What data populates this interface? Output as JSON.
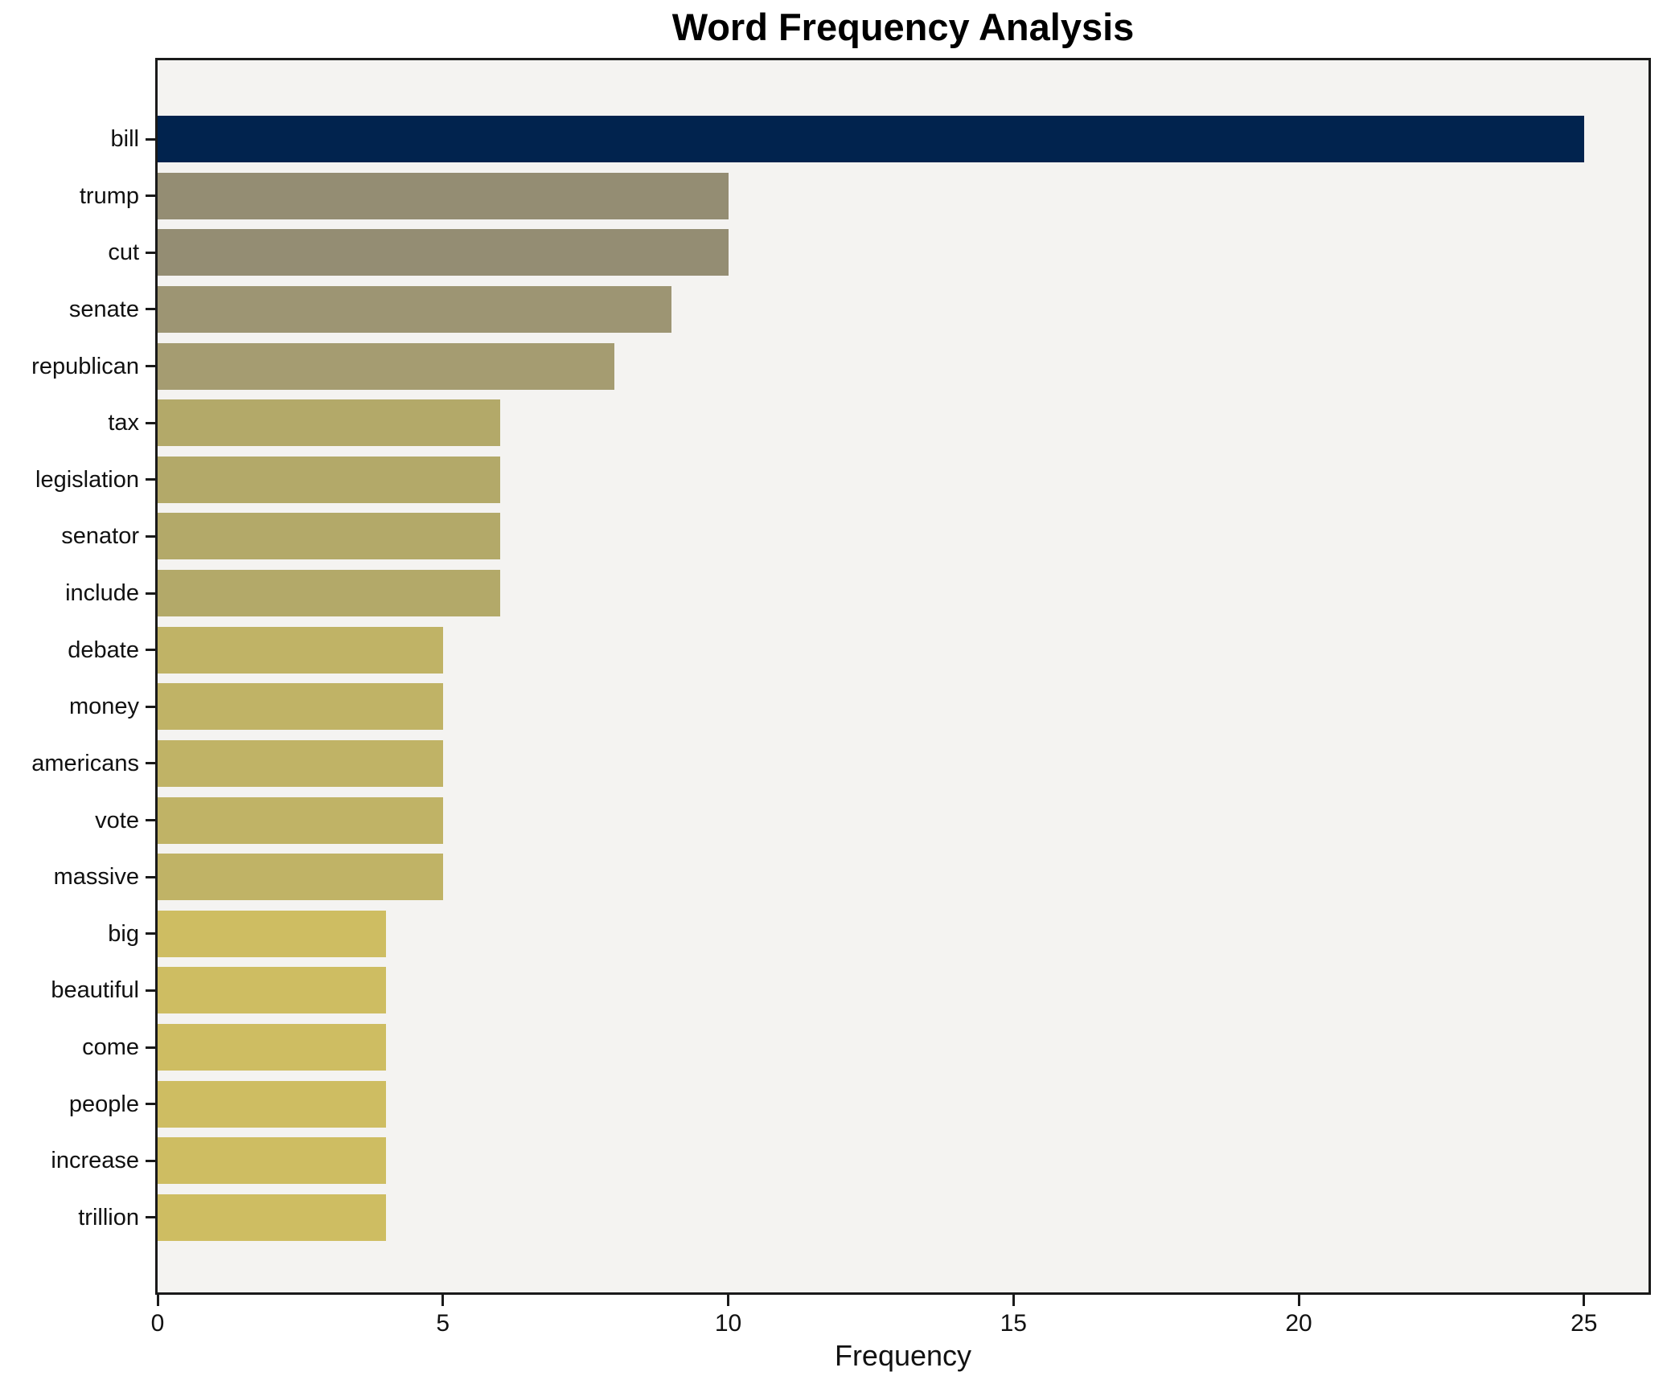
{
  "title": "Word Frequency Analysis",
  "chart_data": {
    "type": "bar",
    "orientation": "horizontal",
    "title": "Word Frequency Analysis",
    "xlabel": "Frequency",
    "ylabel": "",
    "categories": [
      "bill",
      "trump",
      "cut",
      "senate",
      "republican",
      "tax",
      "legislation",
      "senator",
      "include",
      "debate",
      "money",
      "americans",
      "vote",
      "massive",
      "big",
      "beautiful",
      "come",
      "people",
      "increase",
      "trillion"
    ],
    "values": [
      25,
      10,
      10,
      9,
      8,
      6,
      6,
      6,
      6,
      5,
      5,
      5,
      5,
      5,
      4,
      4,
      4,
      4,
      4,
      4
    ],
    "bar_colors": [
      "#01234e",
      "#948d73",
      "#948d73",
      "#9d9573",
      "#a59c71",
      "#b3a969",
      "#b3a969",
      "#b3a969",
      "#b3a969",
      "#c0b366",
      "#c0b366",
      "#c0b366",
      "#c0b366",
      "#c0b366",
      "#cebd62",
      "#cebd62",
      "#cebd62",
      "#cebd62",
      "#cebd62",
      "#cebd62"
    ],
    "xticks": [
      0,
      5,
      10,
      15,
      20,
      25
    ],
    "xlim": [
      0,
      26.13
    ],
    "grid": false,
    "legend": null,
    "plot_bg": "#f4f3f1",
    "figure_bg": "#ffffff",
    "spine_color": "#1a1a1a",
    "text_color": "#111111"
  }
}
